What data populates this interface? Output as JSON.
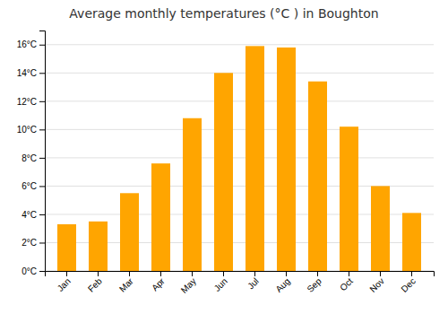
{
  "chart_data": {
    "type": "bar",
    "title": "Average monthly temperatures (°C ) in Boughton",
    "categories": [
      "Jan",
      "Feb",
      "Mar",
      "Apr",
      "May",
      "Jun",
      "Jul",
      "Aug",
      "Sep",
      "Oct",
      "Nov",
      "Dec"
    ],
    "values": [
      3.3,
      3.5,
      5.5,
      7.6,
      10.8,
      14.0,
      15.9,
      15.8,
      13.4,
      10.2,
      6.0,
      4.1
    ],
    "color": "#FFA500",
    "ylim": [
      0,
      17
    ],
    "yticks": [
      {
        "value": 0,
        "label": "0°C"
      },
      {
        "value": 2,
        "label": "2°C"
      },
      {
        "value": 4,
        "label": "4°C"
      },
      {
        "value": 6,
        "label": "6°C"
      },
      {
        "value": 8,
        "label": "8°C"
      },
      {
        "value": 10,
        "label": "10°C"
      },
      {
        "value": 12,
        "label": "12°C"
      },
      {
        "value": 14,
        "label": "14°C"
      },
      {
        "value": 16,
        "label": "16°C"
      }
    ],
    "grid": true
  }
}
